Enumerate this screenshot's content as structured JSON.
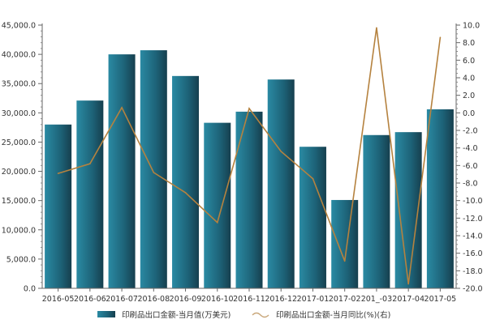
{
  "chart_data": {
    "type": "bar+line",
    "categories": [
      "2016-05",
      "2016-06",
      "2016-07",
      "2016-08",
      "2016-09",
      "2016-10",
      "2016-11",
      "2016-12",
      "2017-01",
      "2017-02",
      "2017-03",
      "2017-04",
      "2017-05"
    ],
    "category_labels": [
      "2016-05",
      "2016-06",
      "2016-07",
      "2016-08",
      "2016-09",
      "2016-10",
      "2016-11",
      "2016-12",
      "2017-01",
      "2017-02",
      "201_-03",
      "2017-04",
      "2017-05"
    ],
    "series": [
      {
        "name": "印刷品出口金额-当月值(万美元)",
        "type": "bar",
        "axis": "left",
        "color": "#1f6f86",
        "values": [
          28000,
          32100,
          40000,
          40700,
          36300,
          28300,
          30200,
          35700,
          24200,
          15100,
          26200,
          26700,
          30600
        ]
      },
      {
        "name": "印刷品出口金额-当月同比(%)(右)",
        "type": "line",
        "axis": "right",
        "color": "#b5823f",
        "values": [
          -6.9,
          -5.8,
          0.6,
          -6.8,
          -9.1,
          -12.5,
          0.5,
          -4.4,
          -7.5,
          -16.9,
          9.7,
          -19.5,
          8.6
        ]
      }
    ],
    "y_left": {
      "range": [
        0,
        45000
      ],
      "ticks": [
        "0.0",
        "5,000.0",
        "10,000.0",
        "15,000.0",
        "20,000.0",
        "25,000.0",
        "30,000.0",
        "35,000.0",
        "40,000.0",
        "45,000.0"
      ]
    },
    "y_right": {
      "range": [
        -20,
        10
      ],
      "ticks": [
        "-20.0",
        "-18.0",
        "-16.0",
        "-14.0",
        "-12.0",
        "-10.0",
        "-8.0",
        "-6.0",
        "-4.0",
        "-2.0",
        "0.0",
        "2.0",
        "4.0",
        "6.0",
        "8.0",
        "10.0"
      ]
    },
    "grid": false,
    "legend": "bottom"
  }
}
